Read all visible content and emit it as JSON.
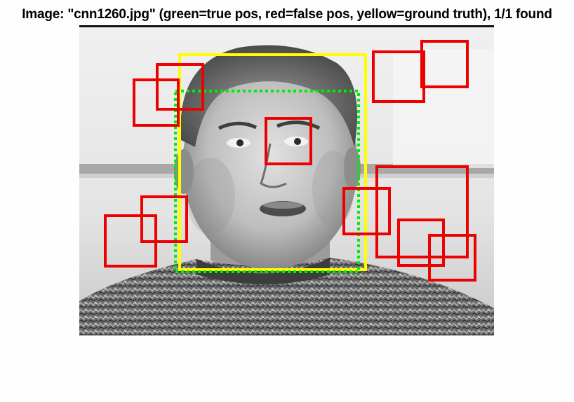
{
  "figure": {
    "title": "Image: \"cnn1260.jpg\" (green=true pos, red=false pos, yellow=ground truth), 1/1 found"
  },
  "colors": {
    "true_positive": "#00ee00",
    "false_positive": "#ee0000",
    "ground_truth": "#ffff00"
  },
  "legend": {
    "green": "true pos",
    "red": "false pos",
    "yellow": "ground truth"
  },
  "result": {
    "image_file": "cnn1260.jpg",
    "found": 1,
    "total": 1
  }
}
